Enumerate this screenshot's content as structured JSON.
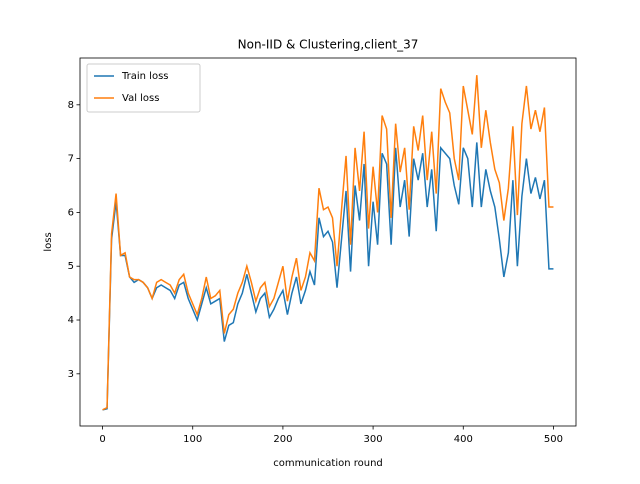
{
  "chart_data": {
    "type": "line",
    "title": "Non-IID & Clustering,client_37",
    "x_label": "communication round",
    "y_label": "loss",
    "x": [
      0,
      5,
      10,
      15,
      20,
      25,
      30,
      35,
      40,
      45,
      50,
      55,
      60,
      65,
      70,
      75,
      80,
      85,
      90,
      95,
      100,
      105,
      110,
      115,
      120,
      125,
      130,
      135,
      140,
      145,
      150,
      155,
      160,
      165,
      170,
      175,
      180,
      185,
      190,
      195,
      200,
      205,
      210,
      215,
      220,
      225,
      230,
      235,
      240,
      245,
      250,
      255,
      260,
      265,
      270,
      275,
      280,
      285,
      290,
      295,
      300,
      305,
      310,
      315,
      320,
      325,
      330,
      335,
      340,
      345,
      350,
      355,
      360,
      365,
      370,
      375,
      380,
      385,
      390,
      395,
      400,
      405,
      410,
      415,
      420,
      425,
      430,
      435,
      440,
      445,
      450,
      455,
      460,
      465,
      470,
      475,
      480,
      485,
      490,
      495,
      500
    ],
    "series": [
      {
        "name": "Train loss",
        "color": "#1f77b4",
        "values": [
          2.33,
          2.35,
          5.5,
          6.2,
          5.2,
          5.2,
          4.8,
          4.7,
          4.75,
          4.7,
          4.6,
          4.4,
          4.6,
          4.65,
          4.6,
          4.55,
          4.4,
          4.65,
          4.7,
          4.4,
          4.2,
          4.0,
          4.3,
          4.6,
          4.3,
          4.35,
          4.4,
          3.6,
          3.9,
          3.95,
          4.3,
          4.5,
          4.85,
          4.5,
          4.15,
          4.4,
          4.5,
          4.05,
          4.2,
          4.4,
          4.55,
          4.1,
          4.5,
          4.8,
          4.3,
          4.55,
          4.9,
          4.65,
          5.9,
          5.55,
          5.65,
          5.45,
          4.6,
          5.5,
          6.4,
          4.9,
          6.5,
          5.85,
          6.9,
          5.0,
          6.2,
          5.4,
          7.1,
          6.9,
          5.4,
          7.2,
          6.1,
          6.6,
          5.55,
          7.0,
          6.6,
          7.1,
          6.1,
          6.8,
          5.65,
          7.2,
          7.1,
          7.0,
          6.5,
          6.15,
          7.2,
          7.0,
          6.1,
          7.3,
          6.1,
          6.8,
          6.4,
          6.1,
          5.5,
          4.8,
          5.25,
          6.6,
          5.0,
          6.3,
          7.0,
          6.35,
          6.65,
          6.25,
          6.6,
          4.95,
          4.95
        ]
      },
      {
        "name": "Val loss",
        "color": "#ff7f0e",
        "values": [
          2.33,
          2.37,
          5.6,
          6.35,
          5.2,
          5.25,
          4.8,
          4.75,
          4.75,
          4.7,
          4.6,
          4.4,
          4.7,
          4.75,
          4.7,
          4.65,
          4.5,
          4.75,
          4.85,
          4.5,
          4.3,
          4.1,
          4.4,
          4.8,
          4.4,
          4.45,
          4.55,
          3.75,
          4.1,
          4.2,
          4.5,
          4.7,
          5.0,
          4.7,
          4.35,
          4.6,
          4.7,
          4.25,
          4.4,
          4.7,
          5.0,
          4.35,
          4.8,
          5.15,
          4.55,
          4.8,
          5.25,
          5.1,
          6.45,
          6.05,
          6.1,
          5.9,
          5.0,
          6.05,
          7.05,
          5.4,
          7.2,
          6.4,
          7.5,
          5.7,
          6.85,
          6.0,
          7.8,
          7.55,
          5.9,
          7.65,
          6.75,
          7.2,
          6.05,
          7.6,
          7.15,
          7.8,
          6.6,
          7.5,
          6.35,
          8.3,
          8.05,
          7.85,
          7.0,
          6.6,
          8.35,
          7.9,
          7.45,
          8.55,
          7.2,
          7.9,
          7.3,
          6.8,
          6.55,
          5.85,
          6.45,
          7.6,
          5.95,
          7.65,
          8.35,
          7.55,
          7.9,
          7.5,
          7.95,
          6.1,
          6.1
        ]
      }
    ],
    "xlim": [
      -25,
      525
    ],
    "ylim": [
      2.03,
      8.87
    ],
    "xticks": [
      0,
      100,
      200,
      300,
      400,
      500
    ],
    "yticks": [
      3,
      4,
      5,
      6,
      7,
      8
    ],
    "legend": "upper left"
  }
}
